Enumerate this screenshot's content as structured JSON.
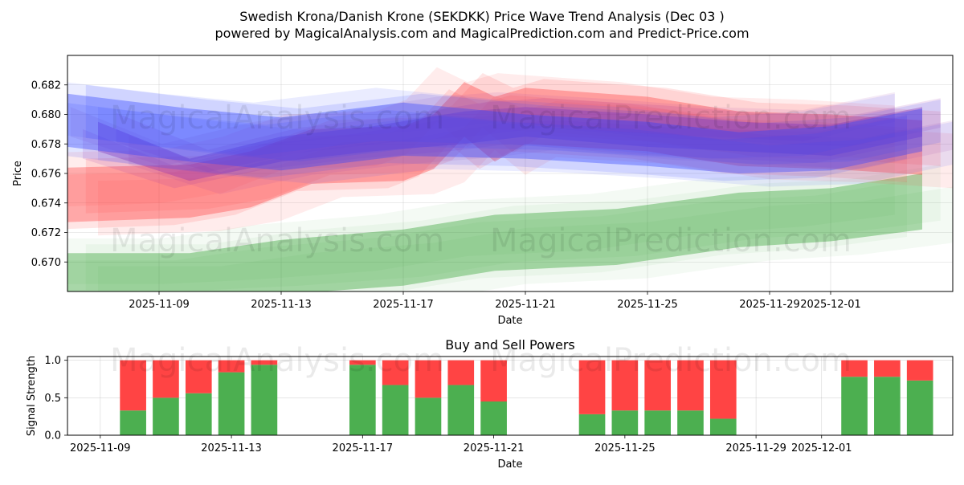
{
  "title_line1": "Swedish Krona/Danish Krone (SEKDKK) Price Wave Trend Analysis (Dec 03 )",
  "title_line2": "powered by MagicalAnalysis.com and MagicalPrediction.com and Predict-Price.com",
  "watermarks": [
    "MagicalAnalysis.com",
    "MagicalPrediction.com"
  ],
  "chart_data": [
    {
      "type": "area",
      "title": "",
      "xlabel": "Date",
      "ylabel": "Price",
      "xlim": [
        "2025-11-06",
        "2025-12-05"
      ],
      "ylim": [
        0.668,
        0.684
      ],
      "x_ticks": [
        "2025-11-09",
        "2025-11-13",
        "2025-11-17",
        "2025-11-21",
        "2025-11-25",
        "2025-11-29",
        "2025-12-01"
      ],
      "y_ticks": [
        0.67,
        0.672,
        0.674,
        0.676,
        0.678,
        0.68,
        0.682
      ],
      "y_tick_labels": [
        "0.670",
        "0.672",
        "0.674",
        "0.676",
        "0.678",
        "0.680",
        "0.682"
      ],
      "grid": true,
      "series": [
        {
          "name": "green-band",
          "color": "#2ca02c",
          "x": [
            "2025-11-06",
            "2025-11-10",
            "2025-11-13",
            "2025-11-17",
            "2025-11-20",
            "2025-11-24",
            "2025-11-28",
            "2025-12-01",
            "2025-12-04"
          ],
          "upper": [
            0.6706,
            0.6706,
            0.6715,
            0.6722,
            0.6732,
            0.6736,
            0.6747,
            0.675,
            0.676
          ],
          "lower": [
            0.6675,
            0.6675,
            0.6678,
            0.6684,
            0.6694,
            0.6698,
            0.671,
            0.6714,
            0.6722
          ]
        },
        {
          "name": "red-band",
          "color": "#ff4444",
          "x": [
            "2025-11-06",
            "2025-11-10",
            "2025-11-12",
            "2025-11-14",
            "2025-11-17",
            "2025-11-18",
            "2025-11-19",
            "2025-11-20",
            "2025-11-21",
            "2025-11-25",
            "2025-11-28",
            "2025-12-01",
            "2025-12-04"
          ],
          "upper": [
            0.6764,
            0.6766,
            0.6775,
            0.679,
            0.6792,
            0.68,
            0.6822,
            0.6812,
            0.6818,
            0.6812,
            0.6802,
            0.68,
            0.6796
          ],
          "lower": [
            0.6727,
            0.673,
            0.6737,
            0.6753,
            0.6755,
            0.6763,
            0.6785,
            0.6768,
            0.678,
            0.6775,
            0.6765,
            0.6763,
            0.6759
          ]
        },
        {
          "name": "purple-band",
          "color": "#9933aa",
          "x": [
            "2025-11-07",
            "2025-11-10",
            "2025-11-13",
            "2025-11-16",
            "2025-11-19",
            "2025-11-21",
            "2025-11-25",
            "2025-11-28",
            "2025-12-01",
            "2025-12-04"
          ],
          "upper": [
            0.6795,
            0.677,
            0.6785,
            0.6792,
            0.6802,
            0.6805,
            0.68,
            0.6795,
            0.6793,
            0.6805
          ],
          "lower": [
            0.6775,
            0.6755,
            0.6768,
            0.6775,
            0.678,
            0.6785,
            0.6778,
            0.6775,
            0.6772,
            0.6785
          ]
        },
        {
          "name": "blue-band",
          "color": "#3344ff",
          "x": [
            "2025-11-06",
            "2025-11-10",
            "2025-11-13",
            "2025-11-17",
            "2025-11-21",
            "2025-11-25",
            "2025-11-28",
            "2025-12-01",
            "2025-12-04"
          ],
          "upper": [
            0.6814,
            0.6804,
            0.6798,
            0.6808,
            0.68,
            0.6795,
            0.6788,
            0.6792,
            0.6804
          ],
          "lower": [
            0.6778,
            0.6768,
            0.6762,
            0.6772,
            0.677,
            0.6765,
            0.676,
            0.6762,
            0.6775
          ]
        }
      ]
    },
    {
      "type": "bar",
      "title": "Buy and Sell Powers",
      "xlabel": "Date",
      "ylabel": "Signal Strength",
      "xlim": [
        "2025-11-08",
        "2025-12-05"
      ],
      "ylim": [
        0,
        1.05
      ],
      "x_ticks": [
        "2025-11-09",
        "2025-11-13",
        "2025-11-17",
        "2025-11-21",
        "2025-11-25",
        "2025-11-29",
        "2025-12-01"
      ],
      "y_ticks": [
        0.0,
        0.5,
        1.0
      ],
      "y_tick_labels": [
        "0.0",
        "0.5",
        "1.0"
      ],
      "buy_color": "#4caf50",
      "sell_color": "#ff4444",
      "categories": [
        "2025-11-10",
        "2025-11-11",
        "2025-11-12",
        "2025-11-13",
        "2025-11-14",
        "2025-11-17",
        "2025-11-18",
        "2025-11-19",
        "2025-11-20",
        "2025-11-21",
        "2025-11-24",
        "2025-11-25",
        "2025-11-26",
        "2025-11-27",
        "2025-11-28",
        "2025-12-02",
        "2025-12-03",
        "2025-12-04"
      ],
      "series": [
        {
          "name": "Buy",
          "values": [
            0.33,
            0.5,
            0.56,
            0.84,
            0.94,
            0.94,
            0.67,
            0.5,
            0.67,
            0.45,
            0.28,
            0.33,
            0.33,
            0.33,
            0.22,
            0.78,
            0.78,
            0.73
          ]
        },
        {
          "name": "Sell",
          "values": [
            0.67,
            0.5,
            0.44,
            0.16,
            0.06,
            0.06,
            0.33,
            0.5,
            0.33,
            0.55,
            0.72,
            0.67,
            0.67,
            0.67,
            0.78,
            0.22,
            0.22,
            0.27
          ]
        }
      ]
    }
  ]
}
